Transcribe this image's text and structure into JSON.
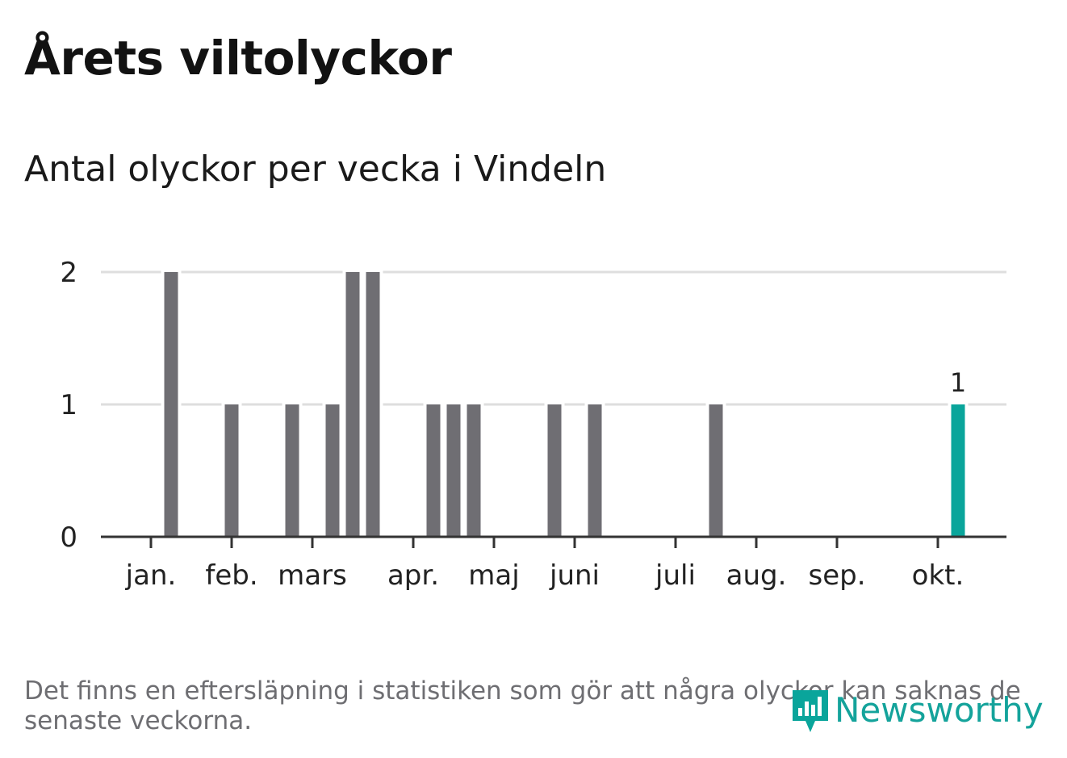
{
  "title": "Årets viltolyckor",
  "subtitle": "Antal olyckor per vecka i Vindeln",
  "note": "Det finns en eftersläpning i statistiken som gör att några olyckor kan saknas de senaste veckorna.",
  "brand": {
    "name": "Newsworthy",
    "icon": "newsworthy-logo-icon"
  },
  "colors": {
    "bar": "#6f6e73",
    "highlight": "#0aa59b",
    "grid": "#dedede",
    "axis": "#333333",
    "text": "#222222"
  },
  "chart_data": {
    "type": "bar",
    "title": "Årets viltolyckor",
    "subtitle": "Antal olyckor per vecka i Vindeln",
    "xlabel": "",
    "ylabel": "",
    "ylim": [
      0,
      2
    ],
    "yticks": [
      "0",
      "1",
      "2"
    ],
    "grid": true,
    "x_unit": "week",
    "x_domain": [
      1,
      46
    ],
    "month_ticks": [
      {
        "label": "jan.",
        "week": 1
      },
      {
        "label": "feb.",
        "week": 5
      },
      {
        "label": "mars",
        "week": 9
      },
      {
        "label": "apr.",
        "week": 14
      },
      {
        "label": "maj",
        "week": 18
      },
      {
        "label": "juni",
        "week": 22
      },
      {
        "label": "juli",
        "week": 27
      },
      {
        "label": "aug.",
        "week": 31
      },
      {
        "label": "sep.",
        "week": 35
      },
      {
        "label": "okt.",
        "week": 40
      }
    ],
    "series": [
      {
        "weeks": [
          2,
          5,
          8,
          10,
          11,
          12,
          15,
          16,
          17,
          21,
          23,
          29,
          41
        ],
        "values": [
          2,
          1,
          1,
          1,
          2,
          2,
          1,
          1,
          1,
          1,
          1,
          1,
          1
        ]
      }
    ],
    "highlight": {
      "week": 41,
      "value": 1,
      "label": "1"
    }
  }
}
